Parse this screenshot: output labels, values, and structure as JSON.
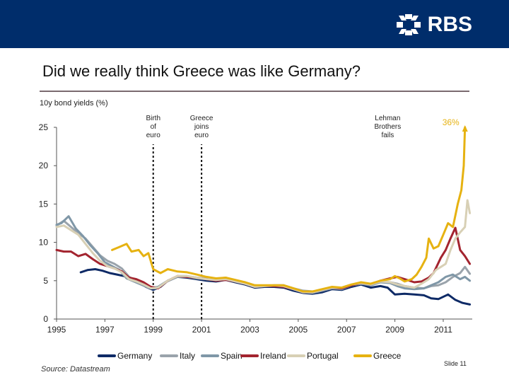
{
  "header": {
    "logo_text": "RBS"
  },
  "title": "Did we really think Greece was like Germany?",
  "subtitle": "10y bond yields (%)",
  "source": "Source: Datastream",
  "slide_label": "Slide 11",
  "colors": {
    "header_bg": "#002d6b",
    "germany": "#0e2a66",
    "italy": "#9aa3ab",
    "spain": "#7f97a7",
    "ireland": "#a3242f",
    "portugal": "#d8d0b5",
    "greece": "#e6b211"
  },
  "chart_data": {
    "type": "line",
    "title": "",
    "xlabel": "",
    "ylabel": "",
    "xlim": [
      1995,
      2012.2
    ],
    "ylim": [
      0,
      25
    ],
    "x_ticks": [
      "1995",
      "1997",
      "1999",
      "2001",
      "2003",
      "2005",
      "2007",
      "2009",
      "2011"
    ],
    "y_ticks": [
      "0",
      "5",
      "10",
      "15",
      "20",
      "25"
    ],
    "grid": false,
    "legend_position": "bottom",
    "annotations": [
      {
        "x": 1999.0,
        "text": [
          "Birth",
          "of",
          "euro"
        ],
        "style": "dashed-vertical-line"
      },
      {
        "x": 2001.0,
        "text": [
          "Greece",
          "joins",
          "euro"
        ],
        "style": "dashed-vertical-line"
      },
      {
        "x": 2008.7,
        "text": [
          "Lehman",
          "Brothers",
          "fails"
        ],
        "style": "label"
      },
      {
        "x": 2011.9,
        "y": 25.0,
        "text": [
          "36%"
        ],
        "style": "arrow-up",
        "color": "#e6b211"
      }
    ],
    "series": [
      {
        "name": "Germany",
        "x": [
          1996.0,
          1996.3,
          1996.6,
          1996.9,
          1997.2,
          1997.5,
          1997.8,
          1998.1,
          1998.4,
          1998.7,
          1999.0,
          1999.3,
          1999.6,
          2000.0,
          2000.4,
          2000.8,
          2001.2,
          2001.6,
          2002.0,
          2002.4,
          2002.8,
          2003.2,
          2003.6,
          2004.0,
          2004.4,
          2004.8,
          2005.2,
          2005.6,
          2006.0,
          2006.4,
          2006.8,
          2007.2,
          2007.6,
          2008.0,
          2008.4,
          2008.7,
          2009.0,
          2009.4,
          2009.8,
          2010.2,
          2010.5,
          2010.8,
          2011.2,
          2011.5,
          2011.8,
          2012.1
        ],
        "y": [
          6.1,
          6.4,
          6.5,
          6.3,
          6.0,
          5.8,
          5.6,
          5.2,
          4.8,
          4.2,
          3.8,
          4.2,
          5.0,
          5.5,
          5.4,
          5.2,
          5.0,
          4.9,
          5.1,
          4.8,
          4.5,
          4.1,
          4.2,
          4.2,
          4.1,
          3.7,
          3.4,
          3.3,
          3.5,
          3.9,
          3.8,
          4.2,
          4.5,
          4.1,
          4.3,
          4.1,
          3.2,
          3.3,
          3.2,
          3.1,
          2.7,
          2.6,
          3.2,
          2.5,
          2.1,
          1.9
        ]
      },
      {
        "name": "Italy",
        "x": [
          1995.0,
          1995.3,
          1995.6,
          1995.9,
          1996.2,
          1996.5,
          1996.8,
          1997.1,
          1997.4,
          1997.7,
          1998.0,
          1998.3,
          1998.6,
          1998.9,
          1999.2,
          1999.6,
          2000.0,
          2000.4,
          2000.8,
          2001.2,
          2001.6,
          2002.0,
          2002.4,
          2002.8,
          2003.2,
          2003.6,
          2004.0,
          2004.4,
          2004.8,
          2005.2,
          2005.6,
          2006.0,
          2006.4,
          2006.8,
          2007.2,
          2007.6,
          2008.0,
          2008.4,
          2008.8,
          2009.1,
          2009.4,
          2009.8,
          2010.2,
          2010.5,
          2010.8,
          2011.1,
          2011.4,
          2011.7,
          2011.9,
          2012.1
        ],
        "y": [
          12.2,
          12.8,
          12.0,
          11.2,
          10.5,
          9.4,
          8.3,
          7.6,
          7.2,
          6.6,
          5.5,
          5.0,
          4.6,
          4.1,
          4.2,
          5.0,
          5.6,
          5.6,
          5.4,
          5.3,
          5.2,
          5.4,
          5.0,
          4.8,
          4.4,
          4.3,
          4.4,
          4.4,
          4.0,
          3.7,
          3.6,
          3.8,
          4.1,
          4.0,
          4.4,
          4.6,
          4.5,
          4.9,
          4.8,
          4.6,
          4.3,
          4.1,
          4.0,
          4.3,
          4.4,
          4.8,
          5.5,
          6.0,
          6.8,
          5.9
        ]
      },
      {
        "name": "Spain",
        "x": [
          1995.0,
          1995.2,
          1995.5,
          1995.8,
          1996.1,
          1996.4,
          1996.7,
          1997.0,
          1997.3,
          1997.6,
          1997.9,
          1998.2,
          1998.5,
          1998.8,
          1999.1,
          1999.5,
          2000.0,
          2000.4,
          2000.8,
          2001.2,
          2001.6,
          2002.0,
          2002.4,
          2002.8,
          2003.2,
          2003.6,
          2004.0,
          2004.4,
          2004.8,
          2005.2,
          2005.6,
          2006.0,
          2006.4,
          2006.8,
          2007.2,
          2007.6,
          2008.0,
          2008.4,
          2008.8,
          2009.1,
          2009.4,
          2009.8,
          2010.2,
          2010.5,
          2010.8,
          2011.1,
          2011.4,
          2011.7,
          2011.9,
          2012.1
        ],
        "y": [
          12.3,
          12.5,
          13.4,
          11.8,
          10.8,
          9.6,
          8.6,
          7.4,
          6.9,
          6.4,
          5.3,
          4.9,
          4.5,
          4.1,
          4.0,
          4.8,
          5.5,
          5.5,
          5.3,
          5.2,
          5.1,
          5.2,
          4.9,
          4.6,
          4.2,
          4.3,
          4.3,
          4.3,
          3.9,
          3.5,
          3.4,
          3.7,
          4.0,
          3.9,
          4.4,
          4.6,
          4.4,
          4.8,
          4.7,
          4.3,
          4.0,
          3.9,
          4.0,
          4.4,
          4.8,
          5.5,
          5.8,
          5.2,
          5.5,
          5.0
        ]
      },
      {
        "name": "Ireland",
        "x": [
          1995.0,
          1995.3,
          1995.6,
          1995.9,
          1996.2,
          1996.5,
          1996.8,
          1997.1,
          1997.4,
          1997.7,
          1998.0,
          1998.3,
          1998.6,
          1998.9,
          1999.2,
          1999.6,
          2000.0,
          2000.4,
          2000.8,
          2001.2,
          2001.6,
          2002.0,
          2002.4,
          2002.8,
          2003.2,
          2003.6,
          2004.0,
          2004.4,
          2004.8,
          2005.2,
          2005.6,
          2006.0,
          2006.4,
          2006.8,
          2007.2,
          2007.6,
          2008.0,
          2008.4,
          2008.8,
          2009.1,
          2009.4,
          2009.8,
          2010.1,
          2010.4,
          2010.6,
          2010.9,
          2011.1,
          2011.3,
          2011.5,
          2011.7,
          2011.9,
          2012.1
        ],
        "y": [
          9.0,
          8.8,
          8.8,
          8.2,
          8.5,
          7.8,
          7.2,
          6.9,
          6.6,
          6.2,
          5.4,
          5.2,
          4.8,
          4.2,
          4.0,
          5.0,
          5.6,
          5.5,
          5.4,
          5.2,
          5.0,
          5.1,
          4.9,
          4.6,
          4.2,
          4.3,
          4.3,
          4.2,
          3.9,
          3.5,
          3.5,
          3.8,
          4.1,
          4.0,
          4.4,
          4.7,
          4.5,
          5.0,
          5.3,
          5.5,
          5.2,
          4.8,
          4.9,
          5.4,
          6.0,
          8.0,
          9.0,
          10.5,
          11.9,
          9.0,
          8.2,
          7.2
        ]
      },
      {
        "name": "Portugal",
        "x": [
          1995.0,
          1995.3,
          1995.6,
          1995.9,
          1996.2,
          1996.5,
          1996.8,
          1997.1,
          1997.4,
          1997.7,
          1998.0,
          1998.3,
          1998.6,
          1998.9,
          1999.2,
          1999.6,
          2000.0,
          2000.4,
          2000.8,
          2001.2,
          2001.6,
          2002.0,
          2002.4,
          2002.8,
          2003.2,
          2003.6,
          2004.0,
          2004.4,
          2004.8,
          2005.2,
          2005.6,
          2006.0,
          2006.4,
          2006.8,
          2007.2,
          2007.6,
          2008.0,
          2008.4,
          2008.8,
          2009.1,
          2009.4,
          2009.8,
          2010.1,
          2010.4,
          2010.7,
          2010.9,
          2011.1,
          2011.3,
          2011.5,
          2011.7,
          2011.9,
          2012.0,
          2012.1
        ],
        "y": [
          12.0,
          12.2,
          11.6,
          11.0,
          9.8,
          8.6,
          7.6,
          6.9,
          6.6,
          6.1,
          5.2,
          4.9,
          4.5,
          4.0,
          4.1,
          5.0,
          5.6,
          5.6,
          5.4,
          5.2,
          5.1,
          5.2,
          4.9,
          4.6,
          4.2,
          4.3,
          4.4,
          4.3,
          3.9,
          3.5,
          3.5,
          3.8,
          4.1,
          4.1,
          4.5,
          4.7,
          4.5,
          4.9,
          4.8,
          4.5,
          4.3,
          4.1,
          4.6,
          5.2,
          6.4,
          6.8,
          7.2,
          9.0,
          10.5,
          11.3,
          12.0,
          15.5,
          13.8
        ]
      },
      {
        "name": "Greece",
        "x": [
          1997.3,
          1997.6,
          1997.9,
          1998.1,
          1998.4,
          1998.6,
          1998.8,
          1999.0,
          1999.3,
          1999.6,
          2000.0,
          2000.4,
          2000.8,
          2001.2,
          2001.6,
          2002.0,
          2002.4,
          2002.8,
          2003.2,
          2003.6,
          2004.0,
          2004.4,
          2004.8,
          2005.2,
          2005.6,
          2006.0,
          2006.4,
          2006.8,
          2007.2,
          2007.6,
          2008.0,
          2008.4,
          2008.8,
          2009.0,
          2009.2,
          2009.4,
          2009.7,
          2009.9,
          2010.1,
          2010.3,
          2010.4,
          2010.6,
          2010.8,
          2011.0,
          2011.2,
          2011.4,
          2011.6,
          2011.75,
          2011.85,
          2011.9
        ],
        "y": [
          9.0,
          9.4,
          9.8,
          8.8,
          9.0,
          8.2,
          8.6,
          6.5,
          6.0,
          6.5,
          6.2,
          6.1,
          5.8,
          5.5,
          5.3,
          5.4,
          5.1,
          4.8,
          4.4,
          4.4,
          4.4,
          4.4,
          4.0,
          3.6,
          3.6,
          3.9,
          4.2,
          4.1,
          4.5,
          4.8,
          4.6,
          5.0,
          5.2,
          5.6,
          5.3,
          4.9,
          5.2,
          5.8,
          6.8,
          8.0,
          10.5,
          9.2,
          9.5,
          11.0,
          12.5,
          12.0,
          15.0,
          16.8,
          20.0,
          25.0
        ]
      }
    ]
  }
}
